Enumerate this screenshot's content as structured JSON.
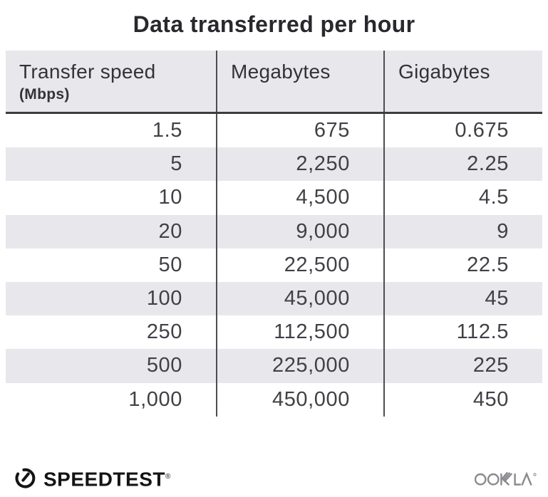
{
  "title": "Data transferred per hour",
  "table": {
    "headers": [
      {
        "label": "Transfer speed",
        "sublabel": "(Mbps)"
      },
      {
        "label": "Megabytes",
        "sublabel": ""
      },
      {
        "label": "Gigabytes",
        "sublabel": ""
      }
    ],
    "rows": [
      [
        "1.5",
        "675",
        "0.675"
      ],
      [
        "5",
        "2,250",
        "2.25"
      ],
      [
        "10",
        "4,500",
        "4.5"
      ],
      [
        "20",
        "9,000",
        "9"
      ],
      [
        "50",
        "22,500",
        "22.5"
      ],
      [
        "100",
        "45,000",
        "45"
      ],
      [
        "250",
        "112,500",
        "112.5"
      ],
      [
        "500",
        "225,000",
        "225"
      ],
      [
        "1,000",
        "450,000",
        "450"
      ]
    ]
  },
  "footer": {
    "speedtest_label": "SPEEDTEST",
    "speedtest_trademark": "®",
    "speedtest_icon": "gauge-icon",
    "ookla_label": "OOKLA",
    "ookla_logo": "ookla-wordmark"
  },
  "colors": {
    "header_bg": "#e8e7ec",
    "row_alt_bg": "#e8e7ec",
    "divider": "#4e4d52",
    "header_underline": "#3d3c41",
    "title_text": "#29282d",
    "cell_text": "#414045",
    "header_text": "#333238",
    "speedtest_black": "#141414",
    "ookla_gray": "#8a898e"
  },
  "chart_data": {
    "type": "table",
    "title": "Data transferred per hour",
    "columns": [
      "Transfer speed (Mbps)",
      "Megabytes",
      "Gigabytes"
    ],
    "rows": [
      [
        1.5,
        675,
        0.675
      ],
      [
        5,
        2250,
        2.25
      ],
      [
        10,
        4500,
        4.5
      ],
      [
        20,
        9000,
        9
      ],
      [
        50,
        22500,
        22.5
      ],
      [
        100,
        45000,
        45
      ],
      [
        250,
        112500,
        112.5
      ],
      [
        500,
        225000,
        225
      ],
      [
        1000,
        450000,
        450
      ]
    ],
    "layout": {
      "grid": false,
      "row_striping": "even rows shaded",
      "value_alignment": "right"
    }
  }
}
